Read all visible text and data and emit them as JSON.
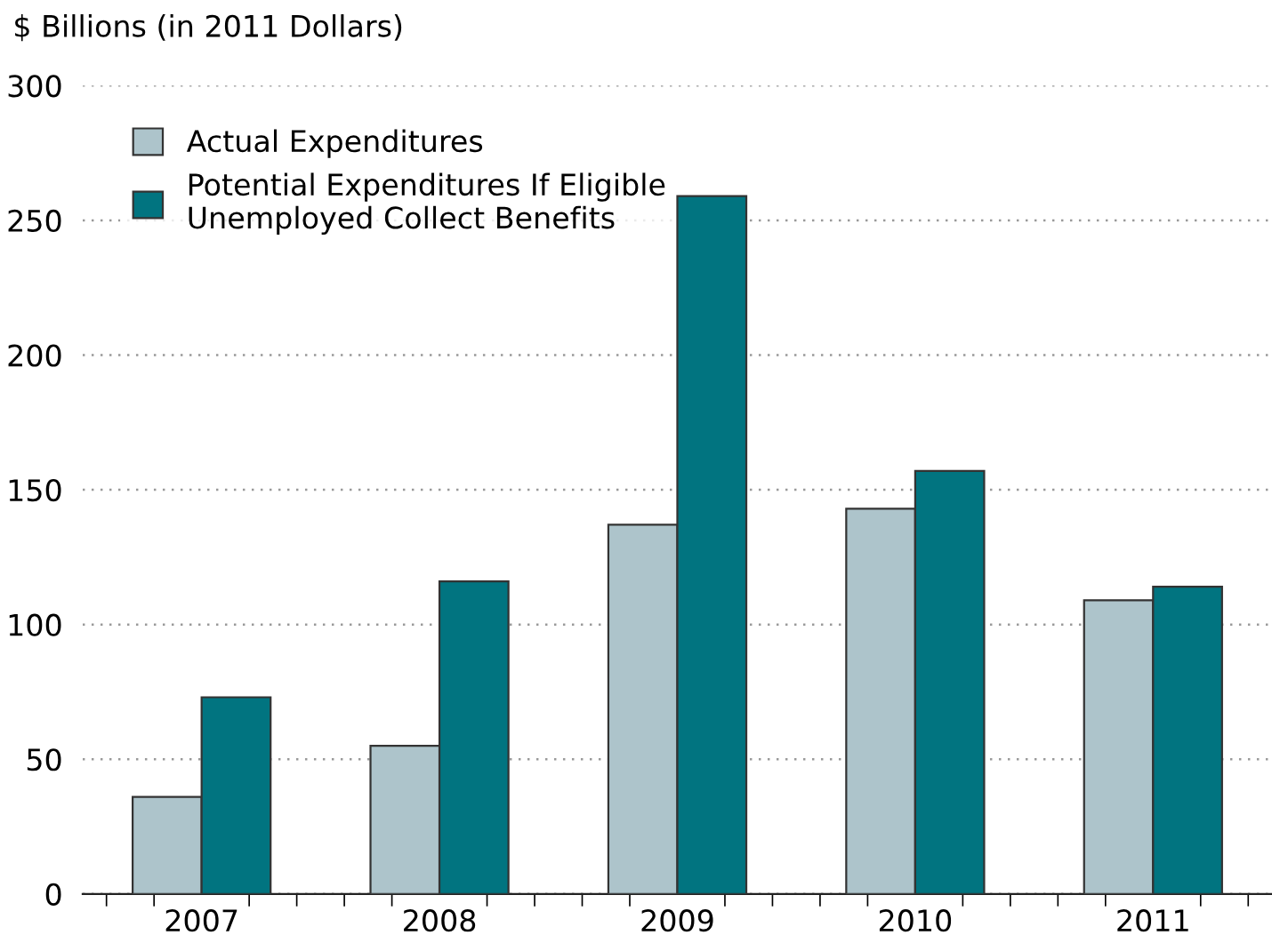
{
  "chart_data": {
    "type": "bar",
    "ylabel": "$ Billions (in 2011 Dollars)",
    "categories": [
      "2007",
      "2008",
      "2009",
      "2010",
      "2011"
    ],
    "series": [
      {
        "name": "Actual Expenditures",
        "color": "#adc4cb",
        "values": [
          36,
          55,
          137,
          143,
          109
        ]
      },
      {
        "name": "Potential Expenditures If Eligible\nUnemployed Collect Benefits",
        "color": "#017480",
        "values": [
          73,
          116,
          259,
          157,
          114
        ]
      }
    ],
    "ylim": [
      0,
      300
    ],
    "yticks": [
      0,
      50,
      100,
      150,
      200,
      250,
      300
    ],
    "grid": "y",
    "legend": "top left"
  }
}
